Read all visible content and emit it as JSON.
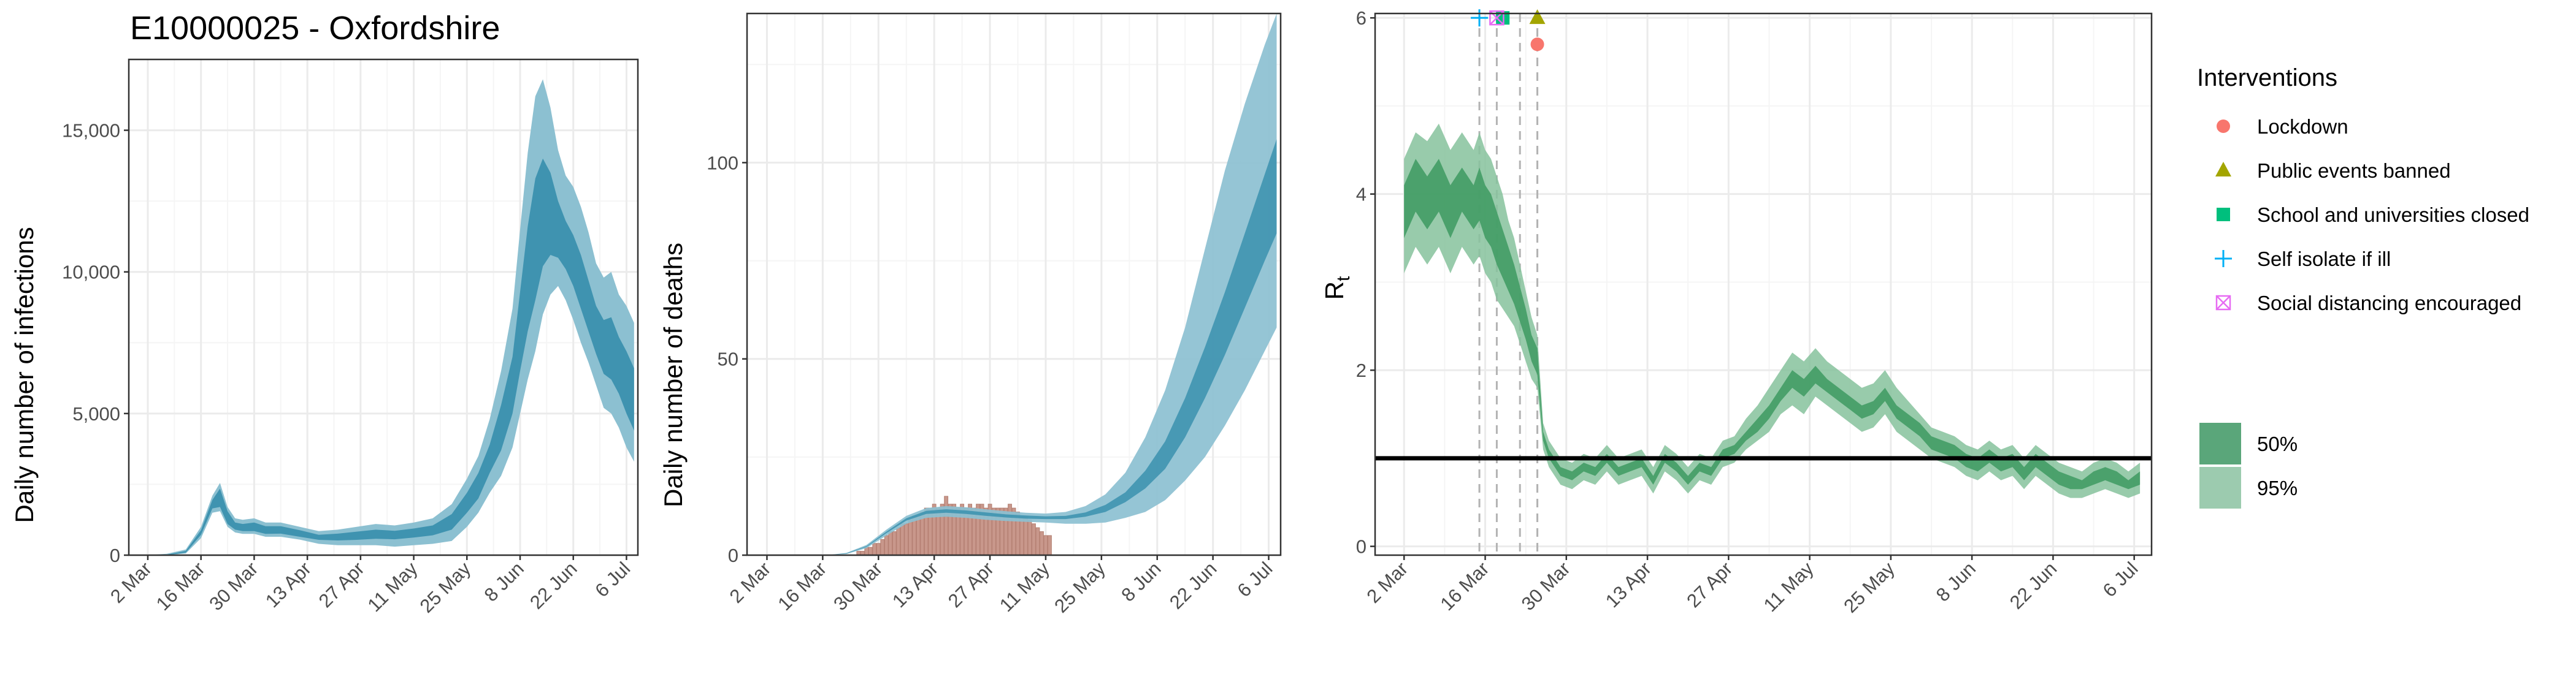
{
  "figure_title": "E10000025 - Oxfordshire",
  "chart_data": [
    {
      "type": "area",
      "title": "E10000025 - Oxfordshire",
      "xlabel": "",
      "ylabel": "Daily number of infections",
      "xlim": [
        -5,
        129
      ],
      "ylim": [
        0,
        17500
      ],
      "grid": true,
      "x_tick_labels": [
        "2 Mar",
        "16 Mar",
        "30 Mar",
        "13 Apr",
        "27 Apr",
        "11 May",
        "25 May",
        "8 Jun",
        "22 Jun",
        "6 Jul"
      ],
      "x_tick_days": [
        0,
        14,
        28,
        42,
        56,
        70,
        84,
        98,
        112,
        126
      ],
      "y_ticks": [
        0,
        5000,
        10000,
        15000
      ],
      "y_tick_labels": [
        "0",
        "5,000",
        "10,000",
        "15,000"
      ],
      "x_days": [
        0,
        5,
        10,
        14,
        17,
        19,
        21,
        23,
        25,
        28,
        31,
        35,
        40,
        45,
        50,
        55,
        60,
        65,
        70,
        75,
        80,
        84,
        87,
        90,
        93,
        96,
        98,
        100,
        102,
        104,
        106,
        108,
        110,
        112,
        114,
        116,
        118,
        120,
        122,
        124,
        126,
        128
      ],
      "band95_low": [
        0,
        0,
        60,
        600,
        1500,
        1550,
        1000,
        800,
        750,
        750,
        650,
        650,
        550,
        400,
        350,
        350,
        350,
        300,
        350,
        400,
        500,
        1000,
        1500,
        2200,
        2800,
        3800,
        5000,
        6200,
        7200,
        8500,
        9200,
        9500,
        9000,
        8300,
        7500,
        6800,
        6000,
        5200,
        5000,
        4500,
        3800,
        3300
      ],
      "band95_high": [
        0,
        50,
        200,
        1000,
        2100,
        2550,
        1700,
        1300,
        1250,
        1300,
        1150,
        1150,
        1000,
        850,
        900,
        1000,
        1100,
        1050,
        1150,
        1300,
        1800,
        2700,
        3500,
        4800,
        6500,
        8700,
        11500,
        14200,
        16200,
        16800,
        15800,
        14300,
        13400,
        13000,
        12300,
        11400,
        10300,
        9800,
        10000,
        9200,
        8800,
        8200
      ],
      "band50_low": [
        0,
        0,
        90,
        720,
        1650,
        1700,
        1100,
        900,
        850,
        850,
        750,
        760,
        650,
        540,
        520,
        540,
        580,
        560,
        620,
        700,
        900,
        1500,
        2000,
        2900,
        3700,
        5000,
        6500,
        7900,
        9000,
        10200,
        10600,
        10500,
        10100,
        9500,
        8700,
        7900,
        7100,
        6400,
        6200,
        5700,
        5000,
        4400
      ],
      "band50_high": [
        0,
        20,
        150,
        880,
        1950,
        2350,
        1550,
        1150,
        1100,
        1150,
        1020,
        1020,
        880,
        720,
        760,
        830,
        900,
        860,
        940,
        1050,
        1450,
        2200,
        2900,
        3900,
        5300,
        7000,
        9300,
        11600,
        13300,
        14000,
        13500,
        12500,
        11800,
        11300,
        10600,
        9700,
        8800,
        8300,
        8400,
        7700,
        7200,
        6600
      ]
    },
    {
      "type": "area",
      "title": "",
      "xlabel": "",
      "ylabel": "Daily number of deaths",
      "xlim": [
        -5,
        129
      ],
      "ylim": [
        0,
        138
      ],
      "grid": true,
      "x_tick_labels": [
        "2 Mar",
        "16 Mar",
        "30 Mar",
        "13 Apr",
        "27 Apr",
        "11 May",
        "25 May",
        "8 Jun",
        "22 Jun",
        "6 Jul"
      ],
      "x_tick_days": [
        0,
        14,
        28,
        42,
        56,
        70,
        84,
        98,
        112,
        126
      ],
      "y_ticks": [
        0,
        50,
        100
      ],
      "y_tick_labels": [
        "0",
        "50",
        "100"
      ],
      "x_days": [
        0,
        10,
        15,
        20,
        25,
        30,
        35,
        40,
        45,
        50,
        55,
        60,
        65,
        70,
        75,
        80,
        85,
        90,
        95,
        100,
        105,
        110,
        115,
        120,
        125,
        128
      ],
      "band95_low": [
        0,
        0,
        0,
        0.3,
        1.8,
        5,
        8,
        9.5,
        9.8,
        9.5,
        9,
        8.7,
        8.5,
        8.3,
        8,
        8,
        8.3,
        9.5,
        11,
        14,
        19,
        25,
        33,
        42,
        52,
        58
      ],
      "band95_high": [
        0,
        0,
        0,
        0.6,
        2.6,
        6.5,
        10,
        12,
        12.5,
        12.2,
        11.7,
        11.2,
        10.8,
        10.6,
        11,
        12.5,
        15.5,
        21,
        30,
        42,
        58,
        78,
        98,
        115,
        130,
        138
      ],
      "band50_low": [
        0,
        0,
        0,
        0.4,
        2.1,
        5.6,
        8.8,
        10.5,
        10.8,
        10.5,
        10,
        9.6,
        9.3,
        9.2,
        9.2,
        9.8,
        11,
        13.5,
        17,
        22,
        30,
        40,
        51,
        63,
        75,
        82
      ],
      "band50_high": [
        0,
        0,
        0,
        0.5,
        2.3,
        6,
        9.4,
        11.3,
        11.7,
        11.4,
        10.9,
        10.4,
        10.1,
        9.9,
        10,
        10.9,
        12.8,
        16,
        21.5,
        29,
        40,
        53,
        67,
        82,
        97,
        106
      ],
      "observed_deaths": {
        "start_day": 23,
        "values": [
          1,
          1,
          2,
          2,
          3,
          3,
          4,
          5,
          6,
          6,
          7,
          8,
          8,
          9,
          10,
          10,
          11,
          12,
          12,
          13,
          12,
          13,
          15,
          13,
          13,
          12,
          13,
          12,
          13,
          12,
          13,
          13,
          12,
          13,
          12,
          12,
          12,
          12,
          13,
          12,
          11,
          10,
          10,
          9,
          8,
          7,
          6,
          5,
          5
        ]
      }
    },
    {
      "type": "line",
      "title": "",
      "xlabel": "",
      "ylabel": "R",
      "ylabel_subscript": "t",
      "xlim": [
        -5,
        129
      ],
      "ylim": [
        -0.1,
        6.05
      ],
      "grid": true,
      "x_tick_labels": [
        "2 Mar",
        "16 Mar",
        "30 Mar",
        "13 Apr",
        "27 Apr",
        "11 May",
        "25 May",
        "8 Jun",
        "22 Jun",
        "6 Jul"
      ],
      "x_tick_days": [
        0,
        14,
        28,
        42,
        56,
        70,
        84,
        98,
        112,
        126
      ],
      "y_ticks": [
        0,
        2,
        4,
        6
      ],
      "y_tick_labels": [
        "0",
        "2",
        "4",
        "6"
      ],
      "reference_line": 1,
      "x_days": [
        0,
        2,
        4,
        6,
        8,
        10,
        12,
        13,
        14,
        15,
        16,
        17,
        18,
        19,
        20,
        21,
        22,
        23,
        24,
        25,
        27,
        29,
        31,
        33,
        35,
        37,
        39,
        41,
        43,
        45,
        47,
        49,
        51,
        53,
        55,
        57,
        59,
        61,
        63,
        65,
        67,
        69,
        71,
        73,
        75,
        77,
        79,
        81,
        83,
        85,
        87,
        89,
        91,
        93,
        95,
        97,
        99,
        101,
        103,
        105,
        107,
        109,
        111,
        113,
        115,
        117,
        119,
        121,
        123,
        125,
        127
      ],
      "band95_low": [
        3.1,
        3.4,
        3.2,
        3.4,
        3.1,
        3.4,
        3.2,
        3.3,
        3.1,
        3.0,
        2.8,
        2.7,
        2.6,
        2.5,
        2.3,
        2.1,
        1.9,
        1.8,
        1.1,
        0.9,
        0.7,
        0.65,
        0.75,
        0.7,
        0.85,
        0.7,
        0.75,
        0.8,
        0.6,
        0.85,
        0.75,
        0.6,
        0.75,
        0.7,
        0.9,
        0.95,
        1.1,
        1.2,
        1.3,
        1.5,
        1.6,
        1.5,
        1.7,
        1.6,
        1.5,
        1.4,
        1.3,
        1.35,
        1.5,
        1.3,
        1.2,
        1.1,
        1.0,
        0.95,
        0.9,
        0.8,
        0.75,
        0.85,
        0.75,
        0.8,
        0.65,
        0.8,
        0.7,
        0.6,
        0.55,
        0.55,
        0.6,
        0.65,
        0.6,
        0.55,
        0.6
      ],
      "band95_high": [
        4.4,
        4.7,
        4.6,
        4.8,
        4.5,
        4.7,
        4.5,
        4.7,
        4.5,
        4.4,
        4.2,
        4.0,
        3.7,
        3.5,
        3.2,
        2.9,
        2.6,
        2.4,
        1.4,
        1.2,
        1.0,
        0.95,
        1.05,
        1.0,
        1.15,
        1.0,
        1.05,
        1.1,
        0.9,
        1.15,
        1.05,
        0.9,
        1.05,
        1.0,
        1.2,
        1.25,
        1.45,
        1.6,
        1.8,
        2.0,
        2.2,
        2.1,
        2.25,
        2.1,
        2.0,
        1.9,
        1.8,
        1.85,
        2.0,
        1.8,
        1.65,
        1.5,
        1.35,
        1.3,
        1.25,
        1.15,
        1.1,
        1.2,
        1.1,
        1.15,
        1.0,
        1.15,
        1.05,
        0.95,
        0.9,
        0.85,
        0.95,
        1.0,
        0.95,
        0.85,
        0.95
      ],
      "band50_low": [
        3.5,
        3.8,
        3.6,
        3.8,
        3.5,
        3.8,
        3.6,
        3.7,
        3.5,
        3.4,
        3.2,
        3.05,
        2.9,
        2.75,
        2.55,
        2.35,
        2.1,
        1.95,
        1.2,
        1.0,
        0.8,
        0.75,
        0.85,
        0.8,
        0.95,
        0.8,
        0.85,
        0.9,
        0.7,
        0.95,
        0.85,
        0.7,
        0.85,
        0.8,
        1.0,
        1.05,
        1.2,
        1.3,
        1.45,
        1.65,
        1.8,
        1.7,
        1.85,
        1.75,
        1.65,
        1.55,
        1.45,
        1.5,
        1.65,
        1.45,
        1.35,
        1.25,
        1.1,
        1.05,
        1.0,
        0.9,
        0.85,
        0.95,
        0.85,
        0.9,
        0.75,
        0.9,
        0.8,
        0.7,
        0.65,
        0.65,
        0.7,
        0.75,
        0.7,
        0.65,
        0.7
      ],
      "band50_high": [
        4.1,
        4.4,
        4.2,
        4.4,
        4.1,
        4.3,
        4.1,
        4.3,
        4.1,
        4.0,
        3.8,
        3.6,
        3.4,
        3.2,
        2.95,
        2.7,
        2.4,
        2.25,
        1.3,
        1.1,
        0.9,
        0.85,
        0.95,
        0.9,
        1.05,
        0.9,
        0.95,
        1.0,
        0.8,
        1.05,
        0.95,
        0.8,
        0.95,
        0.9,
        1.1,
        1.15,
        1.3,
        1.45,
        1.6,
        1.8,
        2.0,
        1.9,
        2.05,
        1.9,
        1.8,
        1.7,
        1.6,
        1.65,
        1.8,
        1.6,
        1.5,
        1.4,
        1.25,
        1.2,
        1.15,
        1.05,
        1.0,
        1.1,
        1.0,
        1.05,
        0.9,
        1.05,
        0.95,
        0.85,
        0.8,
        0.75,
        0.85,
        0.9,
        0.85,
        0.75,
        0.85
      ],
      "interventions": [
        {
          "name": "Lockdown",
          "day": 23,
          "y": 5.7,
          "shape": "circle",
          "color": "#F8766D"
        },
        {
          "name": "Public events banned",
          "day": 23,
          "y": 6.0,
          "shape": "triangle",
          "color": "#A3A500"
        },
        {
          "name": "School and universities closed",
          "day": 20,
          "y": 6.0,
          "shape": "square",
          "color": "#00BF7D"
        },
        {
          "name": "Self isolate if ill",
          "day": 13,
          "y": 6.0,
          "shape": "plus",
          "color": "#00B0F6"
        },
        {
          "name": "Social distancing encouraged",
          "day": 16,
          "y": 6.0,
          "shape": "boxx",
          "color": "#E76BF3"
        }
      ]
    }
  ],
  "legend": {
    "interventions_title": "Interventions",
    "items": [
      {
        "label": "Lockdown",
        "shape": "circle",
        "color": "#F8766D"
      },
      {
        "label": "Public events banned",
        "shape": "triangle",
        "color": "#A3A500"
      },
      {
        "label": "School and universities closed",
        "shape": "square",
        "color": "#00BF7D"
      },
      {
        "label": "Self isolate if ill",
        "shape": "plus",
        "color": "#00B0F6"
      },
      {
        "label": "Social distancing encouraged",
        "shape": "boxx",
        "color": "#E76BF3"
      }
    ],
    "ci_items": [
      {
        "label": "50%",
        "color": "#5aa67a"
      },
      {
        "label": "95%",
        "color": "#9ccbaf"
      }
    ]
  },
  "colors": {
    "infections_band95": "#8cc0d1",
    "infections_band50": "#3f93b0",
    "deaths_band95": "#8cc0d1",
    "deaths_band50": "#3f93b0",
    "observed_bars": "#c8978b",
    "rt_band95": "#86c29c",
    "rt_band50": "#3d9a60",
    "grid": "#ebebeb",
    "panel_border": "#333333"
  }
}
